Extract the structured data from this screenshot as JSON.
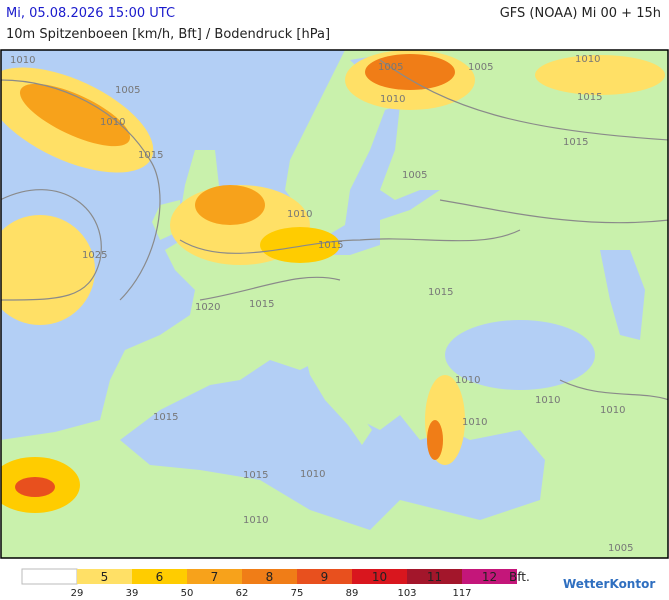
{
  "header": {
    "date": "Mi, 05.08.2026 15:00 UTC",
    "model": "GFS (NOAA) Mi 00 + 15h",
    "subtitle": "10m Spitzenboeen [km/h, Bft] / Bodendruck [hPa]"
  },
  "map": {
    "isobar_labels": [
      "1010",
      "1005",
      "1010",
      "1015",
      "1025",
      "1005",
      "1010",
      "1005",
      "1010",
      "1015",
      "1015",
      "1005",
      "1010",
      "1015",
      "1020",
      "1015",
      "1015",
      "1010",
      "1015",
      "1010",
      "1010",
      "1015",
      "1010",
      "1010",
      "1010",
      "1005"
    ]
  },
  "legend": {
    "bft": [
      "5",
      "6",
      "7",
      "8",
      "9",
      "10",
      "11",
      "12"
    ],
    "kmh": [
      "29",
      "39",
      "50",
      "62",
      "75",
      "89",
      "103",
      "117"
    ],
    "unit": "Bft.",
    "colors": [
      "#ffe066",
      "#ffcc00",
      "#f7a21b",
      "#f07d17",
      "#e8501e",
      "#d9161e",
      "#a3162b",
      "#c4167a"
    ]
  },
  "logo": "WetterKontor"
}
